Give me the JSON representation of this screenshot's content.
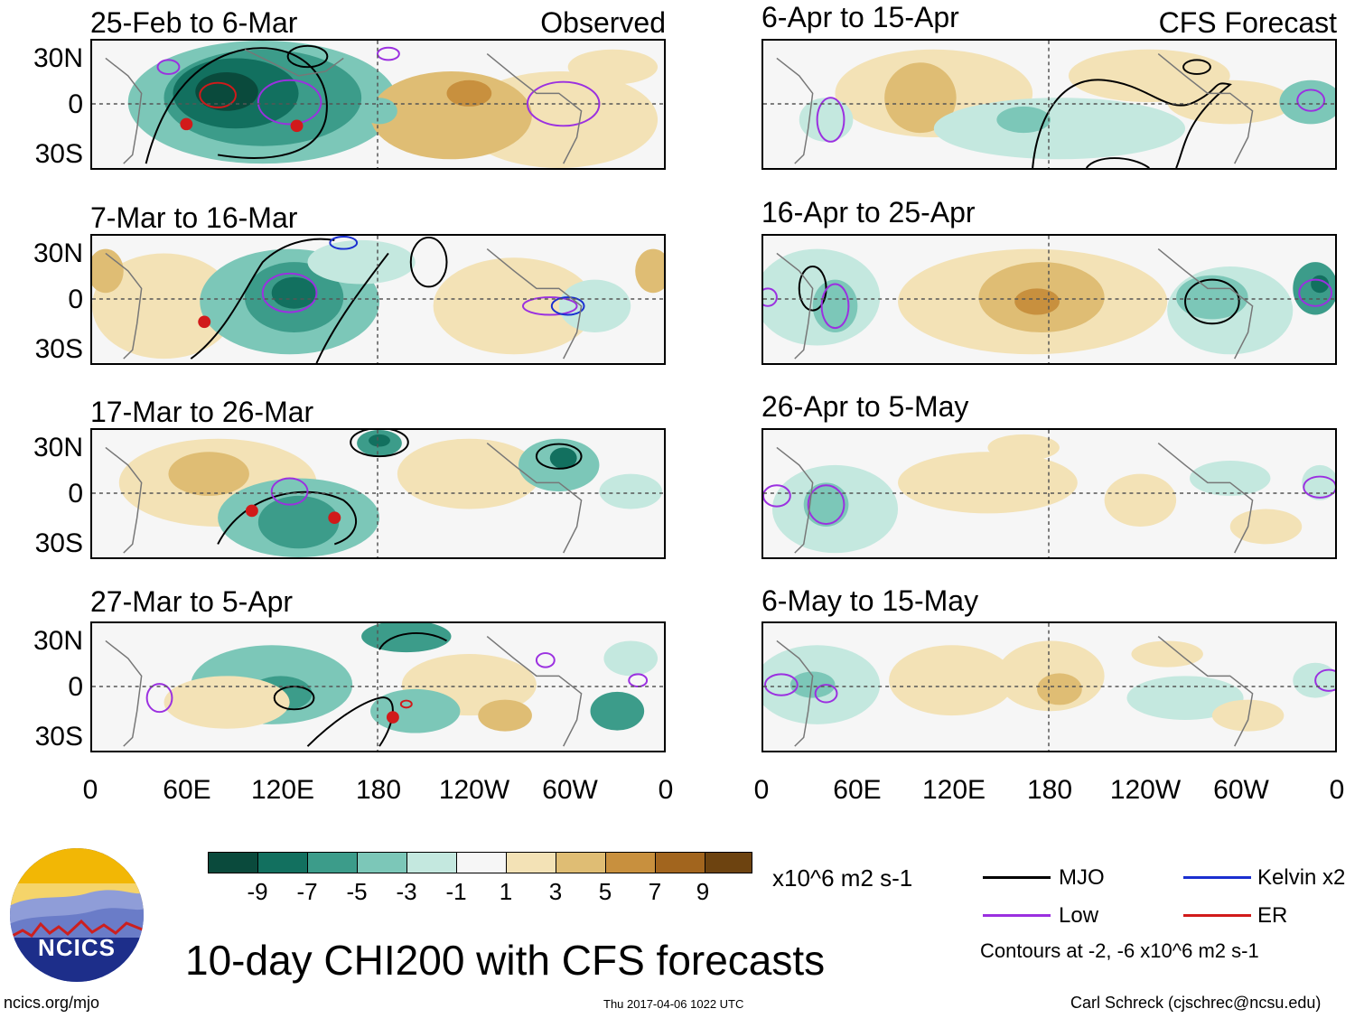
{
  "panels_left": [
    {
      "title": "25-Feb to 6-Mar",
      "tag": "Observed"
    },
    {
      "title": "7-Mar to 16-Mar",
      "tag": ""
    },
    {
      "title": "17-Mar to 26-Mar",
      "tag": ""
    },
    {
      "title": "27-Mar to 5-Apr",
      "tag": ""
    }
  ],
  "panels_right": [
    {
      "title": "6-Apr to 15-Apr",
      "tag": "CFS Forecast"
    },
    {
      "title": "16-Apr to 25-Apr",
      "tag": ""
    },
    {
      "title": "26-Apr to 5-May",
      "tag": ""
    },
    {
      "title": "6-May to 15-May",
      "tag": ""
    }
  ],
  "lat_labels": [
    "30N",
    "0",
    "30S"
  ],
  "lon_labels": [
    "0",
    "60E",
    "120E",
    "180",
    "120W",
    "60W",
    "0"
  ],
  "colorbar": {
    "labels": [
      "-9",
      "-7",
      "-5",
      "-3",
      "-1",
      "1",
      "3",
      "5",
      "7",
      "9"
    ],
    "colors": [
      "#0a4a3c",
      "#12705f",
      "#3c9c8a",
      "#7cc7b8",
      "#c4e8df",
      "#f6f6f6",
      "#f3e2b6",
      "#dfbd74",
      "#c8903e",
      "#a2651e",
      "#6d4310"
    ],
    "units": "x10^6 m2 s-1"
  },
  "legend": {
    "items": [
      {
        "label": "MJO",
        "color": "#000000"
      },
      {
        "label": "Kelvin x2",
        "color": "#1a2fd0"
      },
      {
        "label": "Low",
        "color": "#9b30e0"
      },
      {
        "label": "ER",
        "color": "#d11a1a"
      }
    ],
    "contours_note": "Contours at -2, -6 x10^6 m2 s-1"
  },
  "logo_text": "NCICS",
  "main_title": "10-day CHI200 with CFS forecasts",
  "footer": {
    "url": "ncics.org/mjo",
    "timestamp": "Thu 2017-04-06 1022 UTC",
    "author": "Carl Schreck (cjschrec@ncsu.edu)"
  }
}
